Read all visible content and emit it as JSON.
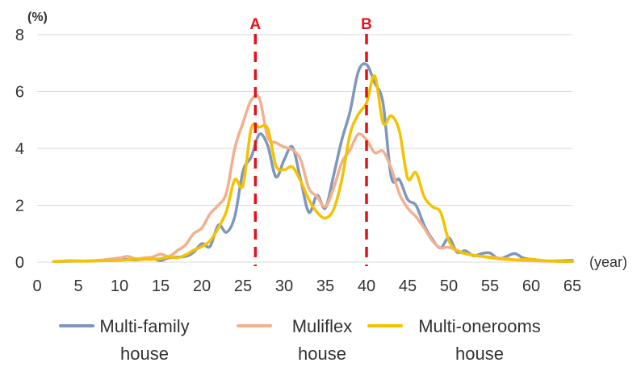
{
  "chart_data": {
    "type": "line",
    "xlabel": "(year)",
    "ylabel": "(%)",
    "xlim": [
      0,
      65
    ],
    "ylim": [
      0,
      8
    ],
    "xticks": [
      0,
      5,
      10,
      15,
      20,
      25,
      30,
      35,
      40,
      45,
      50,
      55,
      60,
      65
    ],
    "yticks": [
      0,
      2,
      4,
      6,
      8
    ],
    "grid": "horizontal",
    "legend": "bottom",
    "markers": [
      {
        "label": "A",
        "x": 26.5,
        "color": "#e3121b"
      },
      {
        "label": "B",
        "x": 40,
        "color": "#e3121b"
      }
    ],
    "series": [
      {
        "name": "Multi-family house",
        "legend_lines": [
          "Multi-family",
          "house"
        ],
        "color": "#7f97bf",
        "points": [
          [
            2,
            0.02
          ],
          [
            4,
            0.03
          ],
          [
            6,
            0.04
          ],
          [
            8,
            0.06
          ],
          [
            10,
            0.1
          ],
          [
            12,
            0.08
          ],
          [
            14,
            0.12
          ],
          [
            15,
            0.05
          ],
          [
            16,
            0.15
          ],
          [
            18,
            0.2
          ],
          [
            19,
            0.35
          ],
          [
            20,
            0.65
          ],
          [
            21,
            0.55
          ],
          [
            22,
            1.3
          ],
          [
            23,
            1.05
          ],
          [
            24,
            1.6
          ],
          [
            25,
            3.2
          ],
          [
            26,
            3.7
          ],
          [
            27,
            4.5
          ],
          [
            28,
            4.1
          ],
          [
            29,
            3.0
          ],
          [
            30,
            3.6
          ],
          [
            31,
            4.05
          ],
          [
            32,
            2.9
          ],
          [
            33,
            1.75
          ],
          [
            34,
            2.35
          ],
          [
            35,
            1.9
          ],
          [
            36,
            3.05
          ],
          [
            37,
            4.3
          ],
          [
            38,
            5.3
          ],
          [
            39,
            6.7
          ],
          [
            40,
            6.95
          ],
          [
            41,
            6.3
          ],
          [
            42,
            5.6
          ],
          [
            43,
            3.0
          ],
          [
            44,
            2.9
          ],
          [
            45,
            2.2
          ],
          [
            46,
            2.0
          ],
          [
            47,
            1.3
          ],
          [
            48,
            0.8
          ],
          [
            49,
            0.5
          ],
          [
            50,
            0.85
          ],
          [
            51,
            0.35
          ],
          [
            52,
            0.4
          ],
          [
            53,
            0.22
          ],
          [
            54,
            0.3
          ],
          [
            55,
            0.32
          ],
          [
            56,
            0.12
          ],
          [
            57,
            0.2
          ],
          [
            58,
            0.3
          ],
          [
            59,
            0.15
          ],
          [
            60,
            0.1
          ],
          [
            62,
            0.04
          ],
          [
            65,
            0.06
          ]
        ]
      },
      {
        "name": "Muliflex house",
        "legend_lines": [
          "Muliflex",
          "house"
        ],
        "color": "#f2b08e",
        "points": [
          [
            2,
            0.02
          ],
          [
            4,
            0.05
          ],
          [
            6,
            0.04
          ],
          [
            8,
            0.08
          ],
          [
            10,
            0.15
          ],
          [
            11,
            0.2
          ],
          [
            12,
            0.12
          ],
          [
            13,
            0.15
          ],
          [
            14,
            0.18
          ],
          [
            15,
            0.28
          ],
          [
            16,
            0.2
          ],
          [
            17,
            0.4
          ],
          [
            18,
            0.6
          ],
          [
            19,
            1.0
          ],
          [
            20,
            1.2
          ],
          [
            21,
            1.7
          ],
          [
            22,
            2.0
          ],
          [
            23,
            2.45
          ],
          [
            24,
            4.0
          ],
          [
            25,
            4.9
          ],
          [
            26,
            5.7
          ],
          [
            27,
            5.75
          ],
          [
            28,
            4.4
          ],
          [
            29,
            4.2
          ],
          [
            30,
            4.05
          ],
          [
            31,
            3.95
          ],
          [
            32,
            3.6
          ],
          [
            33,
            2.6
          ],
          [
            34,
            2.3
          ],
          [
            35,
            1.95
          ],
          [
            36,
            2.6
          ],
          [
            37,
            3.5
          ],
          [
            38,
            3.95
          ],
          [
            39,
            4.5
          ],
          [
            40,
            4.3
          ],
          [
            41,
            3.85
          ],
          [
            42,
            3.9
          ],
          [
            43,
            3.3
          ],
          [
            44,
            2.4
          ],
          [
            45,
            1.9
          ],
          [
            46,
            1.6
          ],
          [
            47,
            1.2
          ],
          [
            48,
            0.75
          ],
          [
            49,
            0.5
          ],
          [
            50,
            0.52
          ],
          [
            52,
            0.3
          ],
          [
            54,
            0.2
          ],
          [
            56,
            0.15
          ],
          [
            58,
            0.08
          ],
          [
            60,
            0.05
          ],
          [
            62,
            0.03
          ],
          [
            65,
            0.02
          ]
        ]
      },
      {
        "name": "Multi-onerooms house",
        "legend_lines": [
          "Multi-onerooms",
          "house"
        ],
        "color": "#f5c200",
        "points": [
          [
            2,
            0.02
          ],
          [
            4,
            0.04
          ],
          [
            6,
            0.03
          ],
          [
            8,
            0.05
          ],
          [
            10,
            0.06
          ],
          [
            12,
            0.1
          ],
          [
            14,
            0.1
          ],
          [
            15,
            0.12
          ],
          [
            16,
            0.18
          ],
          [
            17,
            0.15
          ],
          [
            18,
            0.25
          ],
          [
            19,
            0.42
          ],
          [
            20,
            0.55
          ],
          [
            21,
            0.75
          ],
          [
            22,
            1.2
          ],
          [
            23,
            1.8
          ],
          [
            24,
            2.9
          ],
          [
            25,
            2.7
          ],
          [
            26,
            4.7
          ],
          [
            27,
            4.75
          ],
          [
            28,
            4.7
          ],
          [
            29,
            3.4
          ],
          [
            30,
            3.25
          ],
          [
            31,
            3.35
          ],
          [
            32,
            2.85
          ],
          [
            33,
            2.2
          ],
          [
            34,
            1.75
          ],
          [
            35,
            1.55
          ],
          [
            36,
            1.85
          ],
          [
            37,
            2.9
          ],
          [
            38,
            4.5
          ],
          [
            39,
            5.2
          ],
          [
            40,
            5.6
          ],
          [
            41,
            6.55
          ],
          [
            42,
            4.9
          ],
          [
            43,
            5.15
          ],
          [
            44,
            4.6
          ],
          [
            45,
            2.95
          ],
          [
            46,
            3.15
          ],
          [
            47,
            2.3
          ],
          [
            48,
            1.95
          ],
          [
            49,
            1.75
          ],
          [
            50,
            0.75
          ],
          [
            51,
            0.4
          ],
          [
            52,
            0.3
          ],
          [
            54,
            0.2
          ],
          [
            56,
            0.12
          ],
          [
            58,
            0.08
          ],
          [
            60,
            0.1
          ],
          [
            62,
            0.04
          ],
          [
            65,
            0.02
          ]
        ]
      }
    ]
  }
}
